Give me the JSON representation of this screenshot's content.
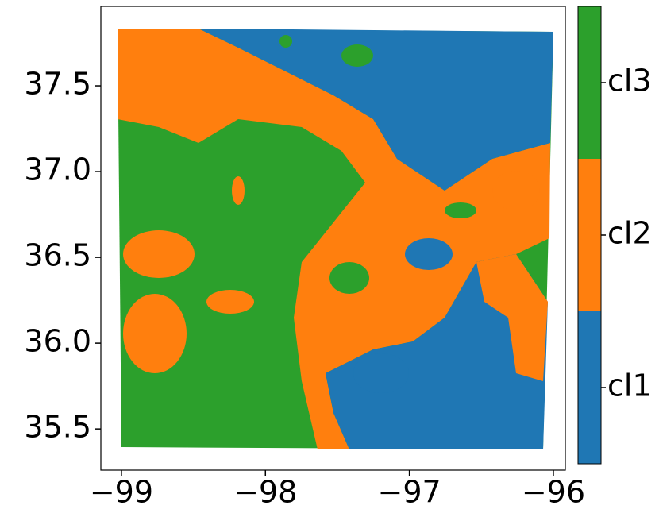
{
  "chart_data": {
    "type": "map",
    "xlim": [
      -99.143,
      -95.917
    ],
    "ylim": [
      35.26,
      37.963
    ],
    "xticks": [
      {
        "value": -99,
        "label": "−99"
      },
      {
        "value": -98,
        "label": "−98"
      },
      {
        "value": -97,
        "label": "−97"
      },
      {
        "value": -96,
        "label": "−96"
      }
    ],
    "yticks": [
      35.5,
      {
        "value": 36.0,
        "label": "36.0"
      },
      36.5,
      {
        "value": 37.0,
        "label": "37.0"
      },
      37.5
    ],
    "colorbar": {
      "categories": [
        "cl1",
        "cl2",
        "cl3"
      ],
      "colors": [
        "#1f77b4",
        "#ff7f0e",
        "#2ca02c"
      ]
    }
  }
}
